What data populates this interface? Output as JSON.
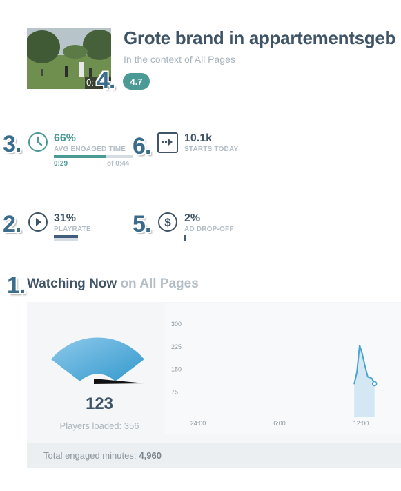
{
  "header": {
    "title": "Grote brand in appartementsgeb",
    "subtitle": "In the context of All Pages",
    "rating": "4.7",
    "video_time": "0:"
  },
  "annotations": [
    "1.",
    "2.",
    "3.",
    "4.",
    "5.",
    "6."
  ],
  "metrics": {
    "engaged": {
      "value": "66%",
      "label": "AVG ENGAGED TIME",
      "current": "0:29",
      "total": "of 0:44",
      "fill": 0.66
    },
    "starts": {
      "value": "10.1k",
      "label": "STARTS TODAY"
    },
    "playrate": {
      "value": "31%",
      "label": "PLAYRATE",
      "fill": 0.31
    },
    "ad_dropoff": {
      "value": "2%",
      "label": "AD DROP-OFF",
      "fill": 0.02
    }
  },
  "watching": {
    "heading": "Watching Now",
    "context": "on All Pages",
    "count": "123",
    "players_loaded": "Players loaded: 356",
    "footer_label": "Total engaged minutes:",
    "footer_value": "4,960"
  },
  "chart_data": {
    "type": "area",
    "x_ticks": [
      "24:00",
      "6:00",
      "12:00"
    ],
    "y_ticks": [
      "300",
      "225",
      "150",
      "75"
    ],
    "ylim": [
      0,
      300
    ],
    "points": [
      {
        "x": 11.5,
        "y": 100
      },
      {
        "x": 11.7,
        "y": 140
      },
      {
        "x": 11.9,
        "y": 230
      },
      {
        "x": 12.1,
        "y": 200
      },
      {
        "x": 12.3,
        "y": 160
      },
      {
        "x": 12.5,
        "y": 125
      },
      {
        "x": 12.8,
        "y": 120
      },
      {
        "x": 13.0,
        "y": 102
      }
    ],
    "color": "#4ba3d1",
    "fill_color": "#d4e8f4"
  }
}
